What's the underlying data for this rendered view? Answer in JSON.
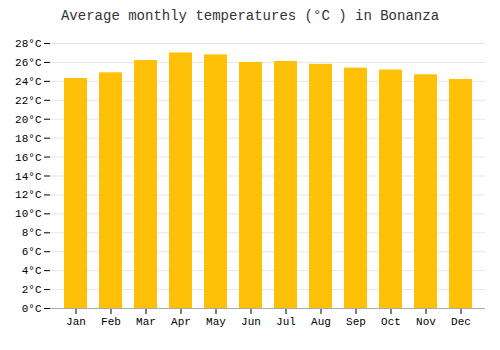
{
  "chart_data": {
    "type": "bar",
    "title": "Average monthly temperatures (°C ) in Bonanza",
    "categories": [
      "Jan",
      "Feb",
      "Mar",
      "Apr",
      "May",
      "Jun",
      "Jul",
      "Aug",
      "Sep",
      "Oct",
      "Nov",
      "Dec"
    ],
    "values": [
      24.3,
      24.9,
      26.2,
      27.0,
      26.8,
      26.0,
      26.1,
      25.8,
      25.4,
      25.2,
      24.7,
      24.2
    ],
    "color": "#FFC107",
    "ylim": [
      0,
      28
    ],
    "yticks": [
      {
        "value": 0,
        "label": "0°C"
      },
      {
        "value": 2,
        "label": "2°C"
      },
      {
        "value": 4,
        "label": "4°C"
      },
      {
        "value": 6,
        "label": "6°C"
      },
      {
        "value": 8,
        "label": "8°C"
      },
      {
        "value": 10,
        "label": "10°C"
      },
      {
        "value": 12,
        "label": "12°C"
      },
      {
        "value": 14,
        "label": "14°C"
      },
      {
        "value": 16,
        "label": "16°C"
      },
      {
        "value": 18,
        "label": "18°C"
      },
      {
        "value": 20,
        "label": "20°C"
      },
      {
        "value": 22,
        "label": "22°C"
      },
      {
        "value": 24,
        "label": "24°C"
      },
      {
        "value": 26,
        "label": "26°C"
      },
      {
        "value": 28,
        "label": "28°C"
      }
    ],
    "grid": true
  }
}
